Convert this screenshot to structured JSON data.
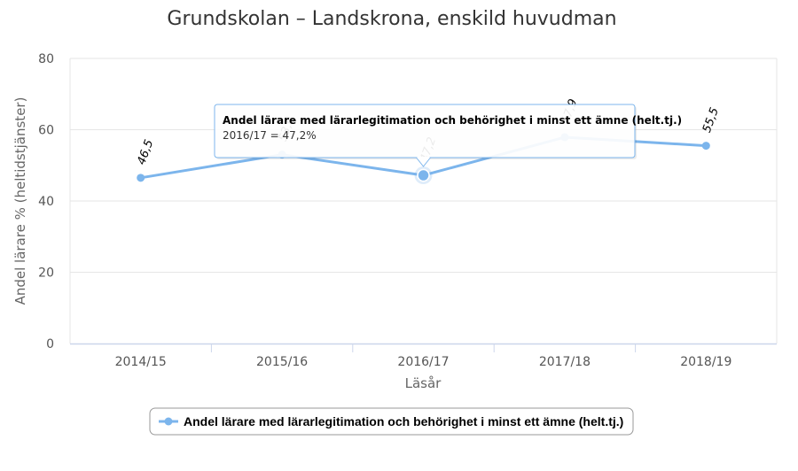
{
  "chart_data": {
    "type": "line",
    "title": "Grundskolan – Landskrona, enskild huvudman",
    "xlabel": "Läsår",
    "ylabel": "Andel lärare % (heltidstjänster)",
    "categories": [
      "2014/15",
      "2015/16",
      "2016/17",
      "2017/18",
      "2018/19"
    ],
    "series": [
      {
        "name": "Andel lärare med lärarlegitimation och behörighet i minst ett ämne (helt.tj.)",
        "values": [
          46.5,
          53.0,
          47.2,
          57.9,
          55.5
        ],
        "data_labels": [
          "46,5",
          "53,0",
          "47,2",
          "57,9",
          "55,5"
        ],
        "color": "#7cb5ec"
      }
    ],
    "ylim": [
      0,
      80
    ],
    "yticks": [
      0,
      20,
      40,
      60,
      80
    ],
    "grid": true,
    "legend_position": "bottom-center",
    "tooltip": {
      "title": "Andel lärare med lärarlegitimation och behörighet i minst ett ämne (helt.tj.)",
      "text": "2016/17 = 47,2%",
      "point_index": 2
    }
  }
}
